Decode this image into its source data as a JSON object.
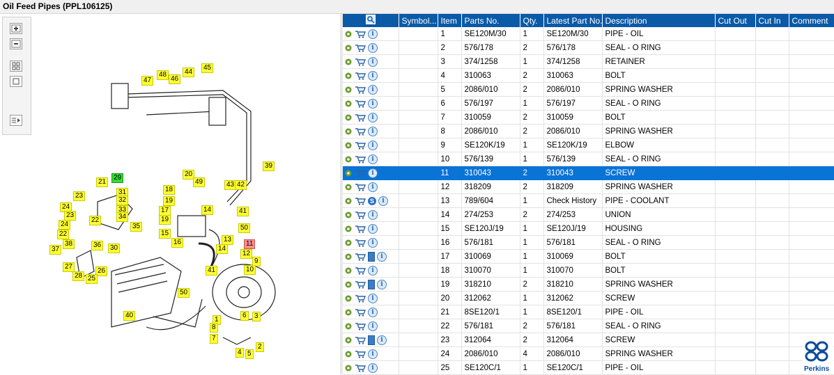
{
  "title": "Oil Feed Pipes (PPL106125)",
  "toolbar": {
    "zoom_in": "zoom-in-icon",
    "zoom_out": "zoom-out-icon",
    "fit": "fit-icon",
    "actual": "actual-size-icon",
    "export": "export-icon"
  },
  "diagram_labels": [
    "1",
    "2",
    "3",
    "4",
    "5",
    "6",
    "7",
    "8",
    "9",
    "10",
    "11",
    "12",
    "13",
    "14",
    "14",
    "15",
    "16",
    "17",
    "18",
    "19",
    "19",
    "20",
    "21",
    "22",
    "22",
    "23",
    "23",
    "24",
    "24",
    "25",
    "26",
    "27",
    "28",
    "29",
    "30",
    "31",
    "32",
    "33",
    "34",
    "35",
    "36",
    "37",
    "38",
    "39",
    "40",
    "41",
    "41",
    "42",
    "43",
    "44",
    "45",
    "46",
    "47",
    "48",
    "49",
    "50",
    "50"
  ],
  "columns": [
    "",
    "Symbol...",
    "Item",
    "Parts No.",
    "Qty.",
    "Latest Part No.",
    "Description",
    "Cut Out",
    "Cut In",
    "Comment"
  ],
  "rows": [
    {
      "item": "1",
      "part": "SE120M/30",
      "qty": "1",
      "latest": "SE120M/30",
      "desc": "PIPE - OIL",
      "extra": "none"
    },
    {
      "item": "2",
      "part": "576/178",
      "qty": "2",
      "latest": "576/178",
      "desc": "SEAL - O RING",
      "extra": "none"
    },
    {
      "item": "3",
      "part": "374/1258",
      "qty": "1",
      "latest": "374/1258",
      "desc": "RETAINER",
      "extra": "none"
    },
    {
      "item": "4",
      "part": "310063",
      "qty": "2",
      "latest": "310063",
      "desc": "BOLT",
      "extra": "none"
    },
    {
      "item": "5",
      "part": "2086/010",
      "qty": "2",
      "latest": "2086/010",
      "desc": "SPRING WASHER",
      "extra": "none"
    },
    {
      "item": "6",
      "part": "576/197",
      "qty": "1",
      "latest": "576/197",
      "desc": "SEAL - O RING",
      "extra": "none"
    },
    {
      "item": "7",
      "part": "310059",
      "qty": "2",
      "latest": "310059",
      "desc": "BOLT",
      "extra": "none"
    },
    {
      "item": "8",
      "part": "2086/010",
      "qty": "2",
      "latest": "2086/010",
      "desc": "SPRING WASHER",
      "extra": "none"
    },
    {
      "item": "9",
      "part": "SE120K/19",
      "qty": "1",
      "latest": "SE120K/19",
      "desc": "ELBOW",
      "extra": "none"
    },
    {
      "item": "10",
      "part": "576/139",
      "qty": "1",
      "latest": "576/139",
      "desc": "SEAL - O RING",
      "extra": "none"
    },
    {
      "item": "11",
      "part": "310043",
      "qty": "2",
      "latest": "310043",
      "desc": "SCREW",
      "extra": "none",
      "selected": true
    },
    {
      "item": "12",
      "part": "318209",
      "qty": "2",
      "latest": "318209",
      "desc": "SPRING WASHER",
      "extra": "none"
    },
    {
      "item": "13",
      "part": "789/604",
      "qty": "1",
      "latest": "Check History",
      "desc": "PIPE - COOLANT",
      "extra": "s"
    },
    {
      "item": "14",
      "part": "274/253",
      "qty": "2",
      "latest": "274/253",
      "desc": "UNION",
      "extra": "none"
    },
    {
      "item": "15",
      "part": "SE120J/19",
      "qty": "1",
      "latest": "SE120J/19",
      "desc": "HOUSING",
      "extra": "none"
    },
    {
      "item": "16",
      "part": "576/181",
      "qty": "1",
      "latest": "576/181",
      "desc": "SEAL - O RING",
      "extra": "none"
    },
    {
      "item": "17",
      "part": "310069",
      "qty": "1",
      "latest": "310069",
      "desc": "BOLT",
      "extra": "book"
    },
    {
      "item": "18",
      "part": "310070",
      "qty": "1",
      "latest": "310070",
      "desc": "BOLT",
      "extra": "none"
    },
    {
      "item": "19",
      "part": "318210",
      "qty": "2",
      "latest": "318210",
      "desc": "SPRING WASHER",
      "extra": "book"
    },
    {
      "item": "20",
      "part": "312062",
      "qty": "1",
      "latest": "312062",
      "desc": "SCREW",
      "extra": "none"
    },
    {
      "item": "21",
      "part": "8SE120/1",
      "qty": "1",
      "latest": "8SE120/1",
      "desc": "PIPE - OIL",
      "extra": "none"
    },
    {
      "item": "22",
      "part": "576/181",
      "qty": "2",
      "latest": "576/181",
      "desc": "SEAL - O RING",
      "extra": "none"
    },
    {
      "item": "23",
      "part": "312064",
      "qty": "2",
      "latest": "312064",
      "desc": "SCREW",
      "extra": "book"
    },
    {
      "item": "24",
      "part": "2086/010",
      "qty": "4",
      "latest": "2086/010",
      "desc": "SPRING WASHER",
      "extra": "none"
    },
    {
      "item": "25",
      "part": "SE120C/1",
      "qty": "1",
      "latest": "SE120C/1",
      "desc": "PIPE - OIL",
      "extra": "none"
    }
  ],
  "brand": "Perkins",
  "colors": {
    "header": "#0a5aa8",
    "selected": "#0a73d6",
    "tag": "#ffff33"
  }
}
